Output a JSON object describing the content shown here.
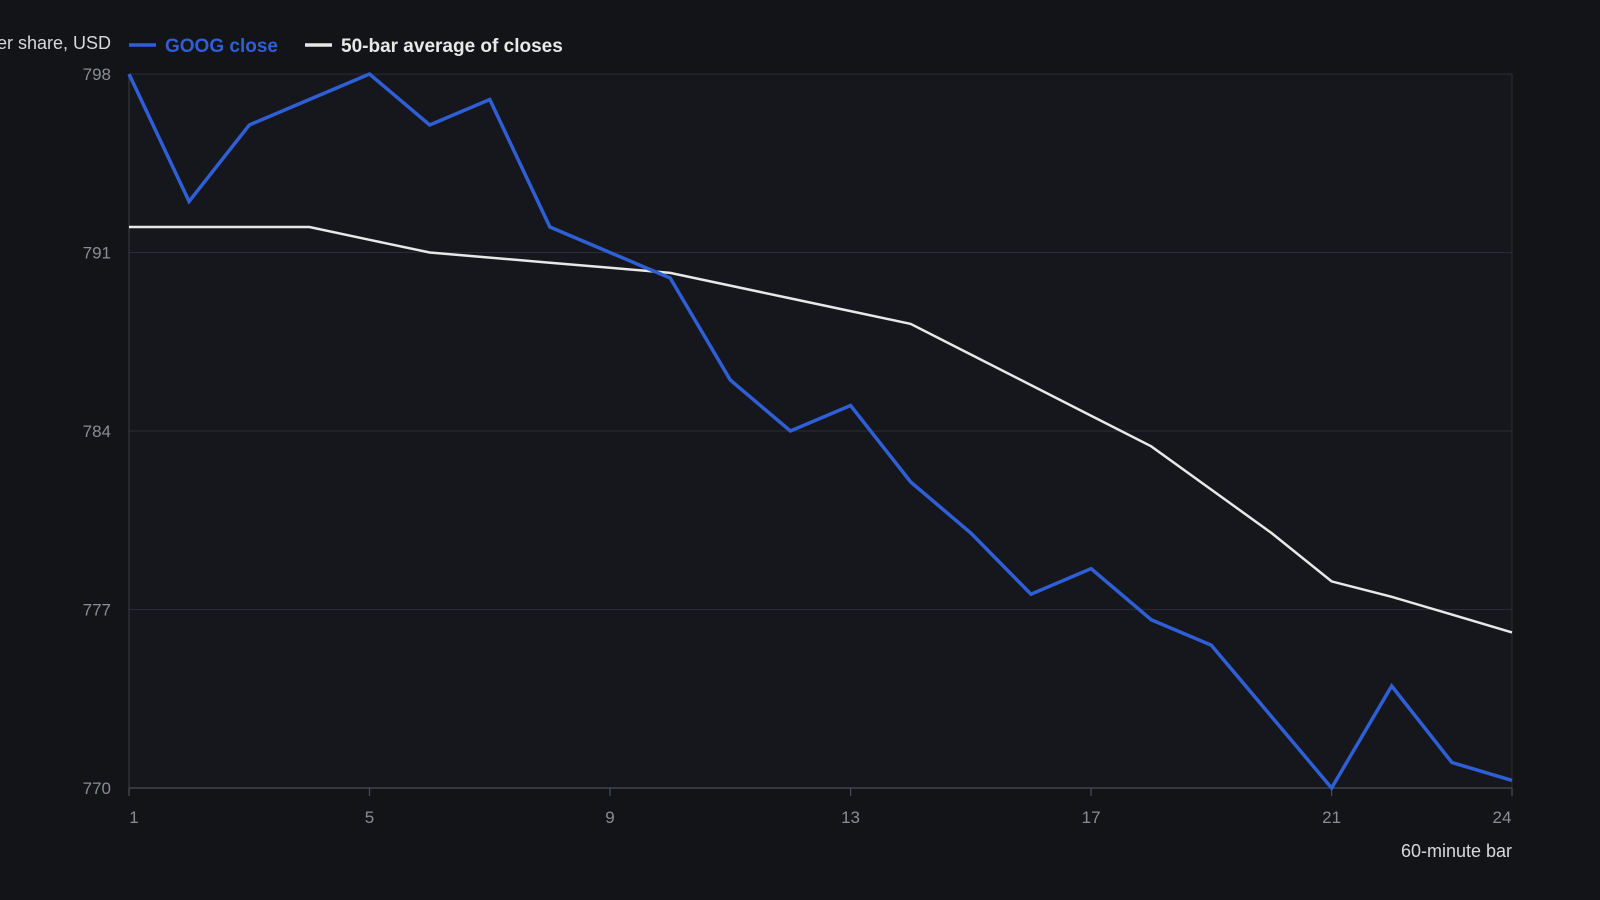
{
  "chart_data": {
    "type": "line",
    "ylabel": "Price per share, USD",
    "xlabel": "60-minute bar",
    "ylim": [
      770,
      798
    ],
    "xlim": [
      1,
      24
    ],
    "yticks": [
      770,
      777,
      784,
      791,
      798
    ],
    "xticks": [
      1,
      5,
      9,
      13,
      17,
      21,
      24
    ],
    "grid": "horizontal",
    "legend_position": "top",
    "x": [
      1,
      2,
      3,
      4,
      5,
      6,
      7,
      8,
      9,
      10,
      11,
      12,
      13,
      14,
      15,
      16,
      17,
      18,
      19,
      20,
      21,
      22,
      23,
      24
    ],
    "series": [
      {
        "name": "GOOG close",
        "color": "#2f5fd6",
        "values": [
          798,
          793,
          796,
          797,
          798,
          796,
          797,
          792,
          791,
          790,
          786,
          784,
          785,
          782,
          780,
          777.6,
          778.6,
          776.6,
          775.6,
          772.8,
          770,
          774,
          771,
          770.3
        ]
      },
      {
        "name": "50-bar average of closes",
        "color": "#e8e8e8",
        "values": [
          792,
          792,
          792,
          792,
          791.5,
          791,
          790.8,
          790.6,
          790.4,
          790.2,
          789.7,
          789.2,
          788.7,
          788.2,
          787,
          785.8,
          784.6,
          783.4,
          781.7,
          780,
          778.1,
          777.5,
          776.8,
          776.1
        ]
      }
    ]
  }
}
